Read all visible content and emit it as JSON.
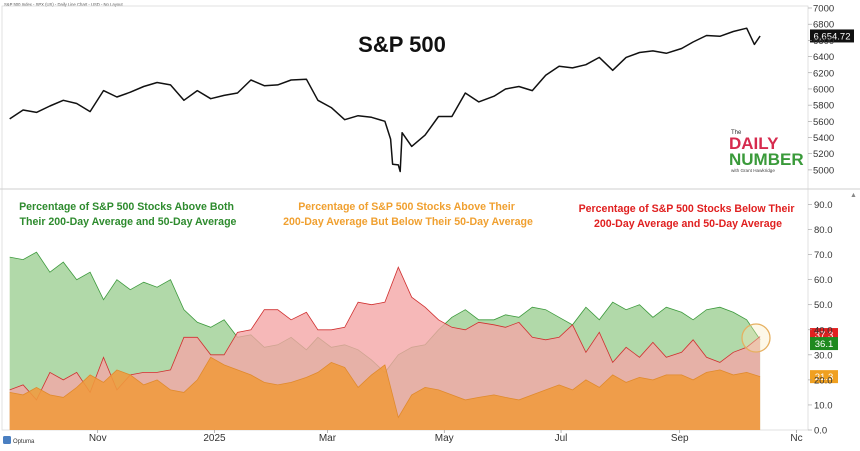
{
  "header": {
    "source_line": "S&P 500 Index - SPX (US) - Daily Line Chart - USD - No Layout",
    "footer_brand": "Optuma"
  },
  "logo": {
    "the": "The",
    "word1": "DAILY",
    "word2": "NUMBER",
    "sub": "with Grant Hawkridge"
  },
  "colors": {
    "green_fill": "#a8d5a0",
    "green_line": "#3d9a3d",
    "red_fill": "#f4a6a6",
    "red_line": "#d03030",
    "orange_fill": "#f09a3e",
    "orange_line": "#e08a2c",
    "price_line": "#111111",
    "green_title": "#2e8b2e",
    "orange_title": "#f0a030",
    "red_title": "#e02020",
    "logo_red": "#d62b4e",
    "logo_green": "#3a9a3a"
  },
  "chart_data": [
    {
      "type": "line",
      "title": "S&P 500",
      "series": [
        {
          "name": "S&P 500",
          "x": [
            "2024-09-16",
            "2024-09-23",
            "2024-09-30",
            "2024-10-07",
            "2024-10-14",
            "2024-10-21",
            "2024-10-28",
            "2024-11-04",
            "2024-11-11",
            "2024-11-18",
            "2024-11-25",
            "2024-12-02",
            "2024-12-09",
            "2024-12-16",
            "2024-12-23",
            "2024-12-30",
            "2025-01-06",
            "2025-01-13",
            "2025-01-20",
            "2025-01-27",
            "2025-02-03",
            "2025-02-10",
            "2025-02-18",
            "2025-02-24",
            "2025-03-03",
            "2025-03-10",
            "2025-03-17",
            "2025-03-24",
            "2025-03-31",
            "2025-04-03",
            "2025-04-04",
            "2025-04-07",
            "2025-04-08",
            "2025-04-09",
            "2025-04-14",
            "2025-04-21",
            "2025-04-28",
            "2025-05-05",
            "2025-05-12",
            "2025-05-19",
            "2025-05-27",
            "2025-06-02",
            "2025-06-09",
            "2025-06-16",
            "2025-06-23",
            "2025-06-30",
            "2025-07-07",
            "2025-07-14",
            "2025-07-21",
            "2025-07-28",
            "2025-08-04",
            "2025-08-11",
            "2025-08-18",
            "2025-08-25",
            "2025-09-02",
            "2025-09-08",
            "2025-09-15",
            "2025-09-22",
            "2025-09-29",
            "2025-10-06",
            "2025-10-10",
            "2025-10-13"
          ],
          "values": [
            5630,
            5740,
            5710,
            5790,
            5860,
            5820,
            5720,
            5980,
            5900,
            5960,
            6030,
            6080,
            6050,
            5860,
            5980,
            5880,
            5920,
            5950,
            6110,
            6040,
            6050,
            6110,
            6120,
            5860,
            5770,
            5620,
            5670,
            5650,
            5600,
            5380,
            5070,
            5062,
            4980,
            5460,
            5290,
            5430,
            5660,
            5660,
            5950,
            5840,
            5910,
            6000,
            6030,
            5980,
            6170,
            6280,
            6260,
            6300,
            6390,
            6230,
            6390,
            6450,
            6470,
            6440,
            6500,
            6580,
            6660,
            6650,
            6710,
            6750,
            6550,
            6654.72
          ]
        }
      ],
      "ylim": [
        4900,
        7000
      ],
      "y_ticks": [
        7000,
        6800,
        6600,
        6400,
        6200,
        6000,
        5800,
        5600,
        5400,
        5200,
        5000
      ],
      "last_value_label": "6,654.72"
    },
    {
      "type": "area",
      "x_ticks": [
        "Nov",
        "2025",
        "Mar",
        "May",
        "Jul",
        "Sep",
        "Nc"
      ],
      "ylim": [
        0,
        95
      ],
      "y_ticks": [
        90,
        80,
        70,
        60,
        50,
        40,
        30,
        20,
        10,
        0
      ],
      "y_tick_labels": [
        "90.0",
        "80.0",
        "70.0",
        "60.0",
        "50.0",
        "40.0",
        "30.0",
        "20.0",
        "10.0",
        "0.0"
      ],
      "annotations": [
        "Percentage of S&P 500 Stocks Above Both Their 200-Day Average and 50-Day Average",
        "Percentage of S&P 500 Stocks Above Their 200-Day Average But Below Their 50-Day Average",
        "Percentage of S&P 500 Stocks Below Their 200-Day Average and 50-Day Average"
      ],
      "x": [
        "2024-09-16",
        "2024-09-23",
        "2024-09-30",
        "2024-10-07",
        "2024-10-14",
        "2024-10-21",
        "2024-10-28",
        "2024-11-04",
        "2024-11-11",
        "2024-11-18",
        "2024-11-25",
        "2024-12-02",
        "2024-12-09",
        "2024-12-16",
        "2024-12-23",
        "2024-12-30",
        "2025-01-06",
        "2025-01-13",
        "2025-01-20",
        "2025-01-27",
        "2025-02-03",
        "2025-02-10",
        "2025-02-18",
        "2025-02-24",
        "2025-03-03",
        "2025-03-10",
        "2025-03-17",
        "2025-03-24",
        "2025-03-31",
        "2025-04-07",
        "2025-04-14",
        "2025-04-21",
        "2025-04-28",
        "2025-05-05",
        "2025-05-12",
        "2025-05-19",
        "2025-05-27",
        "2025-06-02",
        "2025-06-09",
        "2025-06-16",
        "2025-06-23",
        "2025-06-30",
        "2025-07-07",
        "2025-07-14",
        "2025-07-21",
        "2025-07-28",
        "2025-08-04",
        "2025-08-11",
        "2025-08-18",
        "2025-08-25",
        "2025-09-02",
        "2025-09-08",
        "2025-09-15",
        "2025-09-22",
        "2025-09-29",
        "2025-10-06",
        "2025-10-13"
      ],
      "series": [
        {
          "values": [
            15,
            14,
            17,
            14,
            13,
            17,
            22,
            19,
            24,
            22,
            18,
            20,
            16,
            15,
            20,
            29,
            26,
            24,
            22,
            19,
            18,
            19,
            21,
            23,
            27,
            25,
            17,
            22,
            26,
            5,
            14,
            17,
            16,
            14,
            12,
            13,
            14,
            13,
            12,
            14,
            16,
            18,
            16,
            20,
            17,
            22,
            19,
            21,
            20,
            22,
            22,
            20,
            23,
            24,
            22,
            23,
            21.3
          ]
        },
        {
          "values": [
            69,
            68,
            71,
            63,
            67,
            60,
            63,
            52,
            60,
            56,
            59,
            57,
            60,
            48,
            43,
            41,
            44,
            37,
            38,
            33,
            34,
            37,
            32,
            37,
            33,
            34,
            32,
            28,
            23,
            30,
            33,
            34,
            40,
            45,
            48,
            44,
            44,
            46,
            45,
            49,
            48,
            45,
            42,
            49,
            44,
            51,
            48,
            50,
            45,
            49,
            47,
            44,
            48,
            49,
            47,
            44,
            36.1
          ]
        },
        {
          "values": [
            16,
            18,
            12,
            23,
            20,
            23,
            15,
            29,
            16,
            22,
            23,
            23,
            24,
            37,
            37,
            30,
            30,
            39,
            40,
            48,
            48,
            44,
            47,
            40,
            40,
            41,
            51,
            50,
            51,
            65,
            53,
            49,
            44,
            41,
            40,
            43,
            42,
            41,
            43,
            37,
            36,
            37,
            42,
            31,
            39,
            27,
            33,
            29,
            35,
            29,
            31,
            36,
            29,
            27,
            31,
            33,
            37.3
          ]
        }
      ],
      "last_value_labels": [
        "37.3",
        "36.1",
        "21.3"
      ]
    }
  ]
}
